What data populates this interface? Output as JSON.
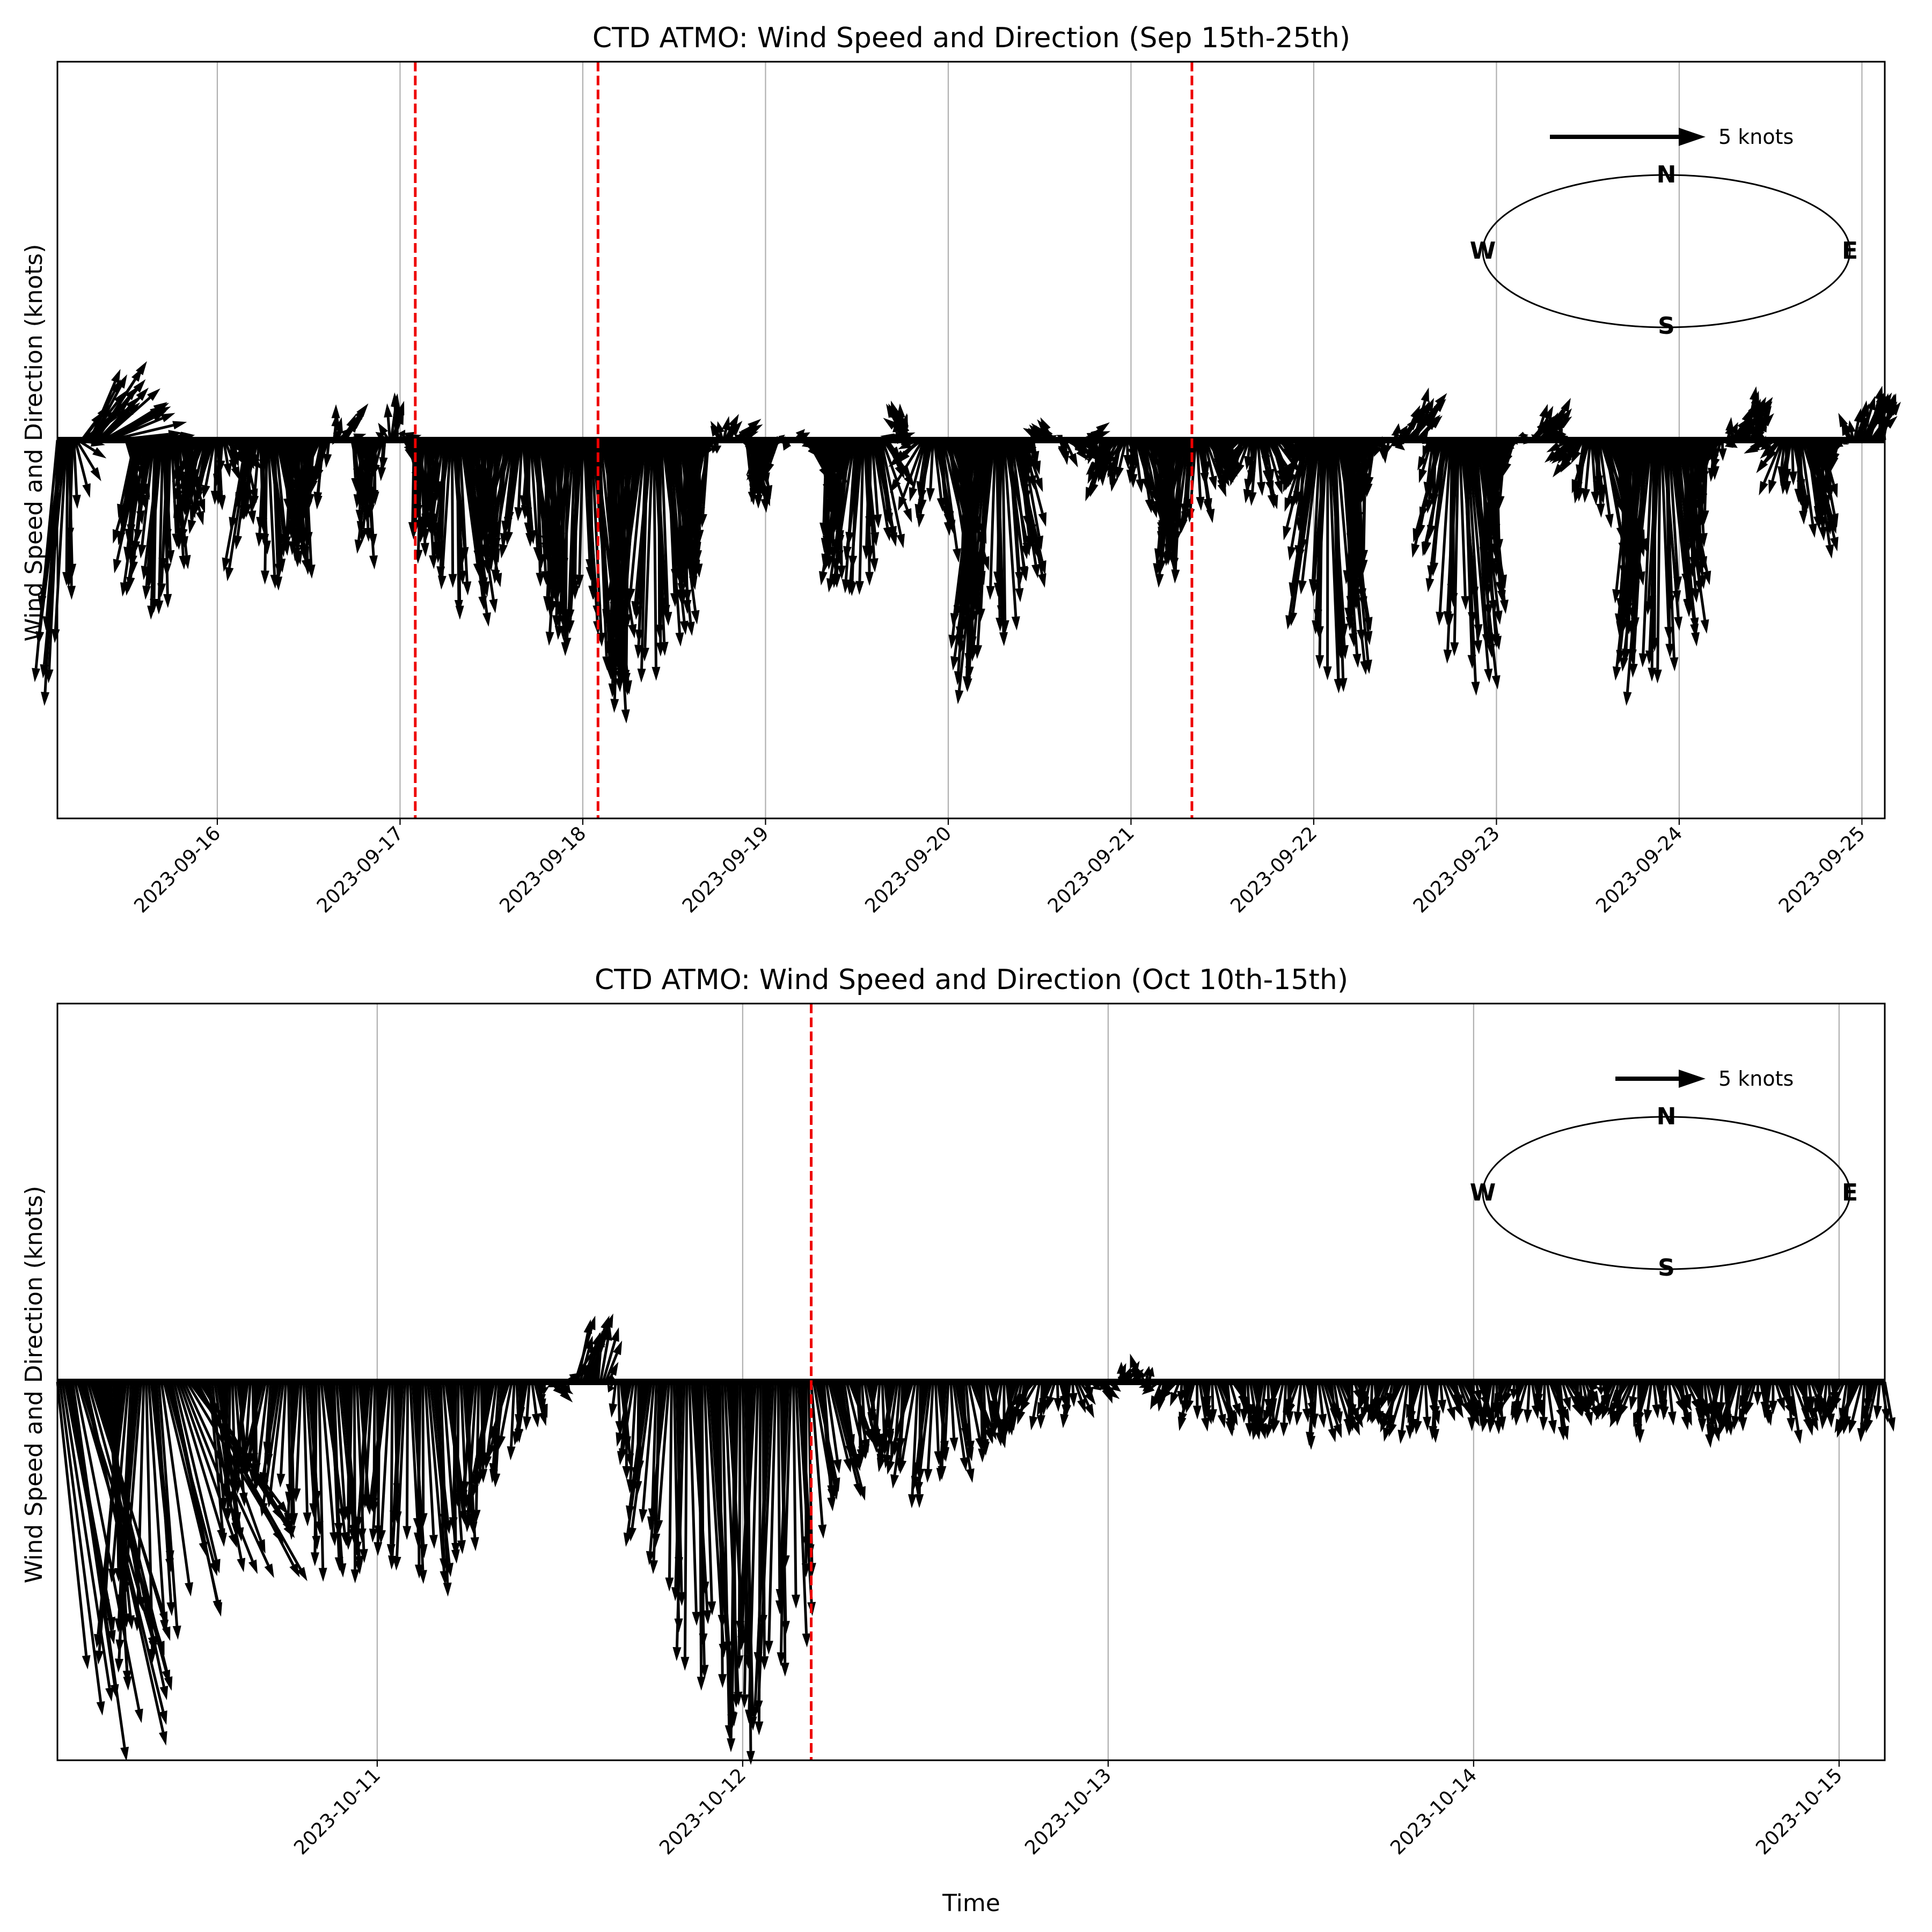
{
  "chart_data": [
    {
      "type": "quiver",
      "title": "CTD ATMO: Wind Speed and Direction (Sep 15th-25th)",
      "xlabel": "",
      "ylabel": "Wind Speed and Direction (knots)",
      "xlim": [
        "2023-09-15 03:00",
        "2023-09-25 03:00"
      ],
      "ylim": [
        -5,
        5
      ],
      "grid": "x",
      "x_ticks": [
        "2023-09-16",
        "2023-09-17",
        "2023-09-18",
        "2023-09-19",
        "2023-09-20",
        "2023-09-21",
        "2023-09-22",
        "2023-09-23",
        "2023-09-24",
        "2023-09-25"
      ],
      "event_lines": [
        "2023-09-17 02:00",
        "2023-09-18 02:00",
        "2023-09-21 08:00"
      ],
      "key": {
        "value": 5,
        "label": "5 knots"
      },
      "compass": {
        "N": "N",
        "E": "E",
        "S": "S",
        "W": "W"
      },
      "sample_interval_minutes": 10,
      "wind_u_knots_hourly": [
        -0.3,
        -0.2,
        0.1,
        0.4,
        0.5,
        0.6,
        0.8,
        1.0,
        0.6,
        0.2,
        -0.2,
        -0.3,
        -0.2,
        -0.1,
        0.0,
        0.1,
        0.2,
        -0.1,
        -0.3,
        -0.3,
        -0.1,
        0.1,
        0.2,
        0.3,
        -0.2,
        -0.2,
        0.0,
        0.1,
        0.3,
        0.1,
        0.0,
        0.0,
        -0.1,
        -0.3,
        -0.1,
        0.1,
        0.3,
        0.2,
        0.1,
        0.0,
        -0.1,
        -0.2,
        0.0,
        0.1,
        0.2,
        0.1,
        0.0,
        0.0,
        -0.1,
        -0.2,
        0.0,
        0.2,
        0.3,
        0.2,
        0.0,
        -0.1,
        -0.2,
        -0.3,
        -0.2,
        0.0,
        0.1,
        0.2,
        0.1,
        0.0,
        -0.1,
        -0.2,
        -0.1,
        0.1,
        0.2,
        0.3,
        0.1,
        0.0,
        -0.1,
        -0.3,
        -0.3,
        -0.1,
        0.1,
        0.2,
        0.2,
        0.1,
        0.0,
        -0.1,
        -0.2,
        -0.2,
        0.0,
        0.2,
        0.3,
        0.2,
        0.1,
        0.0,
        -0.2,
        -0.3,
        -0.2,
        0.0,
        0.2,
        0.4,
        0.3,
        0.1,
        0.0,
        -0.1,
        -0.3,
        -0.2,
        0.0,
        0.1,
        0.3,
        0.3,
        0.1,
        -0.1,
        -0.3,
        -0.4,
        -0.2,
        0.1,
        0.3,
        0.4,
        0.2,
        0.0,
        -0.2,
        -0.3,
        -0.2,
        0.0,
        0.2,
        0.3,
        0.2,
        0.0,
        -0.1,
        -0.2,
        -0.1,
        0.1,
        0.3,
        0.4,
        0.2,
        0.0,
        -0.1,
        -0.2,
        -0.3,
        -0.1,
        0.1,
        0.2,
        0.3,
        0.2,
        0.0,
        -0.1,
        -0.2,
        -0.2,
        0.0,
        0.2,
        0.3,
        0.1,
        0.0,
        -0.2,
        -0.3,
        -0.1,
        0.1,
        0.2,
        0.3,
        0.2,
        0.1,
        -0.1,
        -0.2,
        -0.3,
        -0.1,
        0.1,
        0.3,
        0.2,
        0.0,
        -0.1,
        -0.2,
        -0.2,
        0.0,
        0.1,
        0.3,
        0.4,
        0.2,
        0.0,
        -0.1,
        -0.3,
        -0.2,
        0.0,
        0.2,
        0.3,
        0.2,
        0.1,
        -0.1,
        -0.2,
        -0.3,
        -0.1,
        0.1,
        0.3,
        0.3,
        0.1,
        0.0,
        -0.2,
        -0.3,
        -0.2,
        0.0,
        0.2,
        0.4,
        0.3,
        0.1,
        -0.1,
        -0.2,
        -0.3,
        -0.1,
        0.1,
        0.2,
        0.3,
        0.1,
        0.0,
        -0.1,
        -0.2,
        -0.1,
        0.1,
        0.3,
        0.3,
        0.2,
        0.0,
        -0.1,
        -0.3,
        -0.2,
        0.0,
        0.1,
        0.3,
        0.2,
        0.1,
        -0.1,
        -0.2,
        -0.2,
        0.0,
        0.2,
        0.3,
        0.2,
        0.0
      ],
      "wind_v_knots_hourly": [
        -3.2,
        -2.6,
        -1.3,
        0.4,
        0.7,
        0.9,
        0.4,
        0.2,
        -0.2,
        -0.8,
        -1.4,
        -1.6,
        -1.9,
        -2.1,
        -1.8,
        -1.4,
        -0.9,
        -0.6,
        -0.8,
        -1.1,
        -0.9,
        -0.5,
        -0.3,
        -0.2,
        -1.6,
        -0.9,
        -1.3,
        -1.9,
        -1.5,
        -1.0,
        -1.3,
        -1.7,
        -1.2,
        -0.8,
        -0.6,
        0.3,
        0.5,
        -0.3,
        -0.9,
        -1.4,
        -1.1,
        -0.6,
        0.4,
        0.5,
        -0.4,
        -1.0,
        -1.5,
        -1.3,
        -0.9,
        -1.4,
        -1.9,
        -2.1,
        -2.0,
        -1.7,
        -1.3,
        -1.2,
        -1.4,
        -1.5,
        -1.3,
        -1.2,
        -1.4,
        -1.8,
        -2.0,
        -2.1,
        -2.3,
        -2.4,
        -2.3,
        -2.2,
        -2.6,
        -2.9,
        -3.1,
        -3.0,
        -2.9,
        -2.6,
        -2.7,
        -2.8,
        -2.5,
        -2.3,
        -2.1,
        -1.9,
        -1.6,
        -1.5,
        -1.4,
        -0.2,
        0.2,
        0.3,
        0.1,
        -0.6,
        -0.9,
        -0.7,
        -0.5,
        -0.4,
        -0.1,
        0.1,
        -0.1,
        -0.4,
        -0.8,
        -1.1,
        -1.5,
        -1.7,
        -1.6,
        -1.9,
        -1.7,
        -1.4,
        -1.2,
        -0.2,
        0.3,
        0.4,
        0.4,
        -0.4,
        -0.9,
        -1.1,
        -1.3,
        -1.5,
        -1.8,
        -2.4,
        -3.0,
        -2.9,
        -2.6,
        -2.3,
        -2.0,
        -1.7,
        -1.2,
        -0.4,
        0.0,
        0.3,
        0.1,
        -0.2,
        -0.3,
        -0.1,
        0.1,
        -0.2,
        -0.5,
        -0.6,
        -0.5,
        -0.4,
        -0.6,
        -0.9,
        -1.0,
        -1.2,
        -1.5,
        -1.7,
        -1.5,
        -1.3,
        -1.0,
        -0.7,
        -0.5,
        -0.3,
        -0.1,
        -0.2,
        -0.4,
        -0.6,
        -0.8,
        -0.6,
        -0.4,
        -0.2,
        -0.1,
        -0.6,
        -1.2,
        -2.0,
        -2.6,
        -3.0,
        -2.8,
        -2.5,
        -2.2,
        -1.6,
        -1.0,
        -0.4,
        -0.2,
        0.1,
        0.4,
        0.6,
        0.3,
        -0.1,
        -0.8,
        -1.4,
        -2.0,
        -2.6,
        -2.9,
        -2.7,
        -2.3,
        -1.9,
        -1.5,
        -0.9,
        -0.4,
        -0.1,
        0.2,
        0.3,
        0.4,
        0.3,
        0.1,
        -0.1,
        -0.3,
        -0.6,
        -0.8,
        -1.0,
        -1.3,
        -1.6,
        -2.0,
        -2.4,
        -2.7,
        -2.9,
        -2.8,
        -2.6,
        -2.4,
        -2.2,
        -1.9,
        -1.6,
        -1.2,
        -0.8,
        -0.4,
        0.1,
        0.4,
        0.6,
        0.4,
        0.3,
        0.1,
        -0.2,
        -0.5,
        -0.7,
        -0.9,
        -1.1,
        -1.3,
        -1.0,
        -0.7,
        -0.4,
        -0.1,
        0.3,
        0.6,
        0.5
      ]
    },
    {
      "type": "quiver",
      "title": "CTD ATMO: Wind Speed and Direction (Oct 10th-15th)",
      "xlabel": "Time",
      "ylabel": "Wind Speed and Direction (knots)",
      "xlim": [
        "2023-10-10 03:00",
        "2023-10-15 03:00"
      ],
      "ylim": [
        -5,
        5
      ],
      "grid": "x",
      "x_ticks": [
        "2023-10-11",
        "2023-10-12",
        "2023-10-13",
        "2023-10-14",
        "2023-10-15"
      ],
      "event_lines": [
        "2023-10-12 04:30"
      ],
      "key": {
        "value": 5,
        "label": "5 knots"
      },
      "compass": {
        "N": "N",
        "E": "E",
        "S": "S",
        "W": "W"
      },
      "sample_interval_minutes": 10,
      "wind_u_knots_hourly": [
        0.4,
        0.8,
        1.2,
        0.6,
        -0.2,
        -0.3,
        0.1,
        0.5,
        0.8,
        1.6,
        0.3,
        0.1,
        0.0,
        -0.1,
        -0.2,
        -0.1,
        0.0,
        0.1,
        0.2,
        0.1,
        0.0,
        -0.1,
        -0.1,
        0.0,
        0.1,
        0.2,
        0.1,
        0.0,
        -0.1,
        -0.2,
        -0.1,
        0.0,
        0.1,
        0.2,
        0.3,
        0.2,
        0.1,
        0.0,
        -0.1,
        -0.2,
        -0.1,
        0.0,
        0.1,
        0.2,
        0.1,
        0.0,
        -0.1,
        -0.1,
        0.0,
        0.1,
        0.2,
        0.3,
        0.2,
        0.1,
        0.0,
        -0.1,
        -0.2,
        -0.1,
        0.0,
        0.1,
        0.2,
        0.1,
        0.0,
        -0.1,
        -0.2,
        -0.1,
        0.0,
        0.1,
        0.2,
        0.2,
        0.1,
        0.0,
        -0.1,
        -0.2,
        -0.1,
        0.0,
        0.1,
        0.2,
        0.1,
        0.0,
        -0.1,
        -0.1,
        0.0,
        0.1,
        0.2,
        0.1,
        0.0,
        -0.1,
        -0.2,
        -0.1,
        0.0,
        0.1,
        0.2,
        0.1,
        0.0,
        -0.1,
        -0.1,
        0.0,
        0.1,
        0.2,
        0.1,
        0.0,
        -0.1,
        -0.2,
        -0.1,
        0.0,
        0.1,
        0.2,
        0.1,
        0.0,
        -0.1,
        -0.1,
        0.0,
        0.1,
        0.2,
        0.1,
        0.0,
        -0.1,
        -0.2,
        -0.1,
        0.0
      ],
      "wind_v_knots_hourly": [
        -3.8,
        -4.2,
        -4.0,
        -3.6,
        -3.2,
        -3.3,
        -3.1,
        -2.8,
        -2.4,
        -2.2,
        -2.1,
        -1.8,
        -1.4,
        -1.1,
        -1.3,
        -1.6,
        -1.9,
        -2.1,
        -2.3,
        -2.2,
        -2.1,
        -1.9,
        -2.0,
        -2.2,
        -2.4,
        -2.3,
        -2.1,
        -1.8,
        -1.5,
        -1.2,
        -0.9,
        -0.6,
        -0.3,
        -0.1,
        0.6,
        0.9,
        0.5,
        -0.9,
        -1.3,
        -1.9,
        -2.4,
        -3.1,
        -3.6,
        -3.9,
        -4.1,
        -4.3,
        -4.1,
        -3.8,
        -3.3,
        -2.5,
        -1.6,
        -1.2,
        -1.0,
        -0.9,
        -0.8,
        -1.0,
        -1.3,
        -1.4,
        -1.2,
        -1.0,
        -0.9,
        -0.8,
        -0.7,
        -0.6,
        -0.5,
        -0.4,
        -0.5,
        -0.3,
        -0.2,
        -0.1,
        0.2,
        0.3,
        -0.1,
        -0.3,
        -0.4,
        -0.5,
        -0.6,
        -0.5,
        -0.6,
        -0.7,
        -0.6,
        -0.5,
        -0.6,
        -0.7,
        -0.6,
        -0.5,
        -0.4,
        -0.5,
        -0.6,
        -0.7,
        -0.6,
        -0.5,
        -0.4,
        -0.5,
        -0.6,
        -0.5,
        -0.4,
        -0.5,
        -0.6,
        -0.5,
        -0.4,
        -0.3,
        -0.4,
        -0.5,
        -0.6,
        -0.5,
        -0.4,
        -0.5,
        -0.6,
        -0.7,
        -0.6,
        -0.5,
        -0.4,
        -0.5,
        -0.6,
        -0.5,
        -0.4,
        -0.5,
        -0.6,
        -0.7,
        -0.5
      ]
    }
  ]
}
